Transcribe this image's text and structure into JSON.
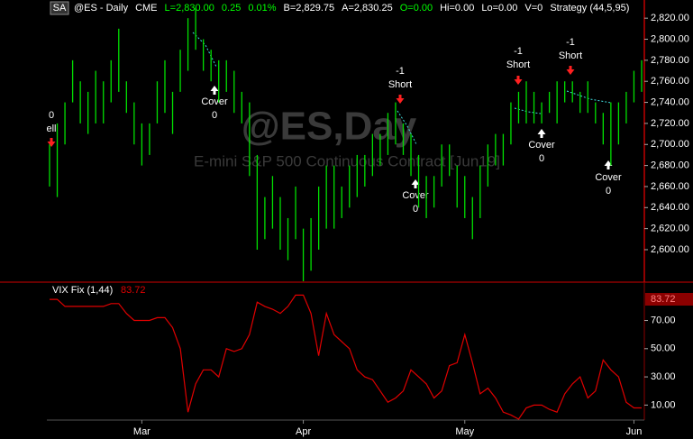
{
  "header": {
    "symbol_box": "SA",
    "items": [
      {
        "text": "@ES - Daily",
        "color": "#ffffff"
      },
      {
        "text": "CME",
        "color": "#ffffff"
      },
      {
        "text": "L=2,830.00",
        "color": "#00ff00"
      },
      {
        "text": "0.25",
        "color": "#00ff00"
      },
      {
        "text": "0.01%",
        "color": "#00ff00"
      },
      {
        "text": "B=2,829.75",
        "color": "#ffffff"
      },
      {
        "text": "A=2,830.25",
        "color": "#ffffff"
      },
      {
        "text": "O=0.00",
        "color": "#00ff00"
      },
      {
        "text": "Hi=0.00",
        "color": "#ffffff"
      },
      {
        "text": "Lo=0.00",
        "color": "#ffffff"
      },
      {
        "text": "V=0",
        "color": "#ffffff"
      },
      {
        "text": "Strategy (44,5,95)",
        "color": "#ffffff"
      }
    ]
  },
  "annotations": [
    [
      "0",
      "ell"
    ],
    [
      "Cover",
      "0"
    ],
    [
      "-1",
      "Short"
    ],
    [
      "Cover",
      "0"
    ],
    [
      "-1",
      "Short"
    ],
    [
      "Cover",
      "0"
    ],
    [
      "-1",
      "Short"
    ],
    [
      "Cover",
      "0"
    ]
  ],
  "chart_data": [
    {
      "type": "hilo",
      "title": "@ES,Day",
      "subtitle": "E-mini S&P 500 Continuous Contract [Jun19]",
      "color": "#00e000",
      "high": [
        2700,
        2720,
        2740,
        2780,
        2760,
        2750,
        2770,
        2760,
        2780,
        2810,
        2760,
        2740,
        2720,
        2720,
        2760,
        2780,
        2750,
        2790,
        2820,
        2830,
        2800,
        2790,
        2780,
        2780,
        2770,
        2750,
        2740,
        2690,
        2650,
        2670,
        2650,
        2630,
        2660,
        2620,
        2630,
        2660,
        2680,
        2680,
        2660,
        2680,
        2690,
        2690,
        2710,
        2710,
        2730,
        2740,
        2720,
        2710,
        2690,
        2670,
        2670,
        2700,
        2700,
        2680,
        2670,
        2650,
        2680,
        2700,
        2710,
        2710,
        2740,
        2750,
        2760,
        2750,
        2740,
        2750,
        2760,
        2760,
        2760,
        2750,
        2760,
        2740,
        2730,
        2740,
        2740,
        2750,
        2770,
        2780
      ],
      "low": [
        2660,
        2650,
        2700,
        2740,
        2720,
        2710,
        2720,
        2720,
        2740,
        2750,
        2730,
        2700,
        2680,
        2690,
        2720,
        2730,
        2710,
        2750,
        2770,
        2790,
        2770,
        2760,
        2740,
        2750,
        2730,
        2720,
        2670,
        2600,
        2610,
        2620,
        2600,
        2590,
        2610,
        2570,
        2580,
        2600,
        2620,
        2620,
        2630,
        2640,
        2650,
        2660,
        2670,
        2680,
        2690,
        2700,
        2690,
        2670,
        2640,
        2630,
        2640,
        2660,
        2670,
        2640,
        2630,
        2610,
        2630,
        2660,
        2680,
        2680,
        2700,
        2720,
        2720,
        2720,
        2720,
        2730,
        2720,
        2740,
        2740,
        2730,
        2730,
        2720,
        2700,
        2680,
        2700,
        2720,
        2740,
        2750
      ],
      "ylim": [
        2570,
        2833
      ],
      "yticks": [
        {
          "value": 2600,
          "label": "2,600.00"
        },
        {
          "value": 2620,
          "label": "2,620.00"
        },
        {
          "value": 2640,
          "label": "2,640.00"
        },
        {
          "value": 2660,
          "label": "2,660.00"
        },
        {
          "value": 2680,
          "label": "2,680.00"
        },
        {
          "value": 2700,
          "label": "2,700.00"
        },
        {
          "value": 2720,
          "label": "2,720.00"
        },
        {
          "value": 2740,
          "label": "2,740.00"
        },
        {
          "value": 2760,
          "label": "2,760.00"
        },
        {
          "value": 2780,
          "label": "2,780.00"
        },
        {
          "value": 2800,
          "label": "2,800.00"
        },
        {
          "value": 2820,
          "label": "2,820.00"
        }
      ]
    },
    {
      "type": "line",
      "title": "VIX Fix (1,44)",
      "value_label": "83.72",
      "color": "#e00000",
      "categories": [
        null,
        null,
        null,
        null,
        null,
        null,
        null,
        null,
        null,
        null,
        null,
        null,
        "Mar",
        null,
        null,
        null,
        null,
        null,
        null,
        null,
        null,
        null,
        null,
        null,
        null,
        null,
        null,
        null,
        null,
        null,
        null,
        null,
        null,
        "Apr",
        null,
        null,
        null,
        null,
        null,
        null,
        null,
        null,
        null,
        null,
        null,
        null,
        null,
        null,
        null,
        null,
        null,
        null,
        null,
        null,
        "May",
        null,
        null,
        null,
        null,
        null,
        null,
        null,
        null,
        null,
        null,
        null,
        null,
        null,
        null,
        null,
        null,
        null,
        null,
        null,
        null,
        null,
        "Jun",
        null
      ],
      "values": [
        85,
        85,
        80,
        80,
        80,
        80,
        80,
        80,
        82,
        82,
        75,
        70,
        70,
        70,
        72,
        72,
        65,
        50,
        5,
        25,
        35,
        35,
        30,
        50,
        48,
        50,
        60,
        83,
        80,
        78,
        75,
        80,
        88,
        88,
        75,
        45,
        75,
        60,
        55,
        50,
        35,
        30,
        28,
        20,
        12,
        15,
        20,
        35,
        30,
        25,
        15,
        20,
        38,
        40,
        60,
        40,
        18,
        22,
        15,
        5,
        3,
        0,
        8,
        10,
        10,
        7,
        5,
        18,
        25,
        30,
        15,
        20,
        42,
        35,
        30,
        12,
        8,
        8
      ],
      "ylim": [
        0,
        94
      ],
      "yticks": [
        {
          "value": 10,
          "label": "10.00"
        },
        {
          "value": 30,
          "label": "30.00"
        },
        {
          "value": 50,
          "label": "50.00"
        },
        {
          "value": 70,
          "label": "70.00"
        }
      ]
    }
  ]
}
